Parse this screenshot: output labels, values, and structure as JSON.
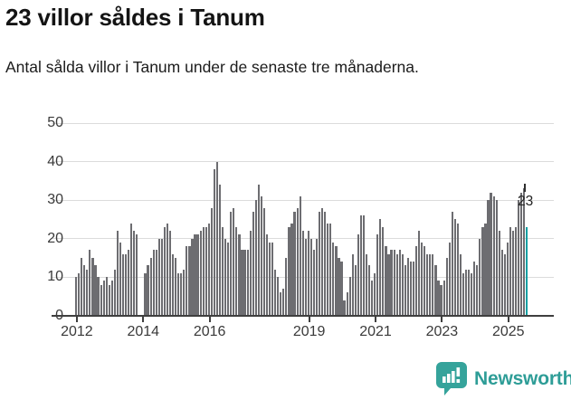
{
  "header": {
    "title": "23 villor såldes i Tanum",
    "subtitle": "Antal sålda villor i Tanum under de senaste tre månaderna."
  },
  "chart_data": {
    "type": "bar",
    "title": "23 villor såldes i Tanum",
    "x_start": "2012-01",
    "x_end": "2025-08",
    "x_frequency": "monthly",
    "values": [
      10,
      11,
      15,
      13,
      12,
      17,
      15,
      13,
      10,
      8,
      9,
      10,
      8,
      9,
      12,
      22,
      19,
      16,
      16,
      17,
      24,
      22,
      21,
      0,
      0,
      11,
      13,
      15,
      17,
      17,
      20,
      20,
      23,
      24,
      22,
      16,
      15,
      11,
      11,
      12,
      18,
      18,
      20,
      21,
      21,
      22,
      23,
      23,
      24,
      28,
      38,
      40,
      34,
      23,
      20,
      19,
      27,
      28,
      23,
      21,
      17,
      17,
      17,
      22,
      27,
      30,
      34,
      31,
      28,
      21,
      19,
      19,
      12,
      10,
      6,
      7,
      15,
      23,
      24,
      27,
      28,
      31,
      22,
      20,
      22,
      20,
      17,
      20,
      27,
      28,
      27,
      24,
      24,
      19,
      18,
      15,
      14,
      4,
      6,
      10,
      16,
      13,
      21,
      26,
      26,
      16,
      13,
      9,
      11,
      21,
      25,
      23,
      18,
      16,
      17,
      17,
      16,
      17,
      16,
      13,
      15,
      14,
      14,
      18,
      22,
      19,
      18,
      16,
      16,
      16,
      13,
      9,
      8,
      9,
      15,
      19,
      27,
      25,
      24,
      16,
      11,
      12,
      12,
      11,
      14,
      13,
      20,
      23,
      24,
      30,
      32,
      31,
      30,
      22,
      17,
      16,
      19,
      23,
      22,
      23,
      30,
      32,
      33,
      23
    ],
    "highlight_index": 163,
    "highlight_value": 23,
    "annotation_label": "23",
    "ylim": [
      0,
      50
    ],
    "yticks": [
      0,
      10,
      20,
      30,
      40,
      50
    ],
    "xticks": [
      "2012",
      "2014",
      "2016",
      "2019",
      "2021",
      "2023",
      "2025"
    ],
    "grid": "horizontal",
    "legend": "none",
    "colors": {
      "bar": "#6d6d71",
      "highlight": "#0aa0a2"
    }
  },
  "footer": {
    "brand": "Newsworthy",
    "logo_icon": "bar-chart-speech-bubble-icon",
    "brand_color": "#2e9d97",
    "icon_color": "#35a39b"
  }
}
